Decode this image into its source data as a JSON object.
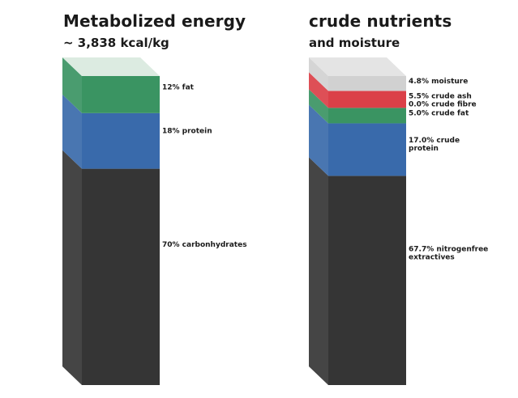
{
  "panels": [
    {
      "title": "Metabolized energy",
      "subtitle": "~ 3,838 kcal/kg",
      "chart_data": {
        "type": "bar",
        "stacked": true,
        "unit": "%",
        "segments": [
          {
            "name": "carbonhydrates",
            "value": 70,
            "label": "70% carbonhydrates",
            "color": "#2a2a2a"
          },
          {
            "name": "protein",
            "value": 18,
            "label": "18% protein",
            "color": "#2e62a6"
          },
          {
            "name": "fat",
            "value": 12,
            "label": "12% fat",
            "color": "#2f8e5a"
          }
        ]
      }
    },
    {
      "title": "crude nutrients",
      "subtitle": "and moisture",
      "chart_data": {
        "type": "bar",
        "stacked": true,
        "unit": "%",
        "segments": [
          {
            "name": "nitrogenfree extractives",
            "value": 67.7,
            "label": "67.7% nitrogenfree extractives",
            "color": "#2a2a2a"
          },
          {
            "name": "crude protein",
            "value": 17.0,
            "label": "17.0% crude protein",
            "color": "#2e62a6"
          },
          {
            "name": "crude fat",
            "value": 5.0,
            "label": "5.0% crude fat",
            "color": "#2f8e5a"
          },
          {
            "name": "crude fibre",
            "value": 0.0,
            "label": "0.0% crude fibre",
            "color": "#c9c9c9"
          },
          {
            "name": "crude ash",
            "value": 5.5,
            "label": "5.5% crude ash",
            "color": "#d9363e"
          },
          {
            "name": "moisture",
            "value": 4.8,
            "label": "4.8% moisture",
            "color": "#cfcfcf"
          }
        ]
      }
    }
  ]
}
